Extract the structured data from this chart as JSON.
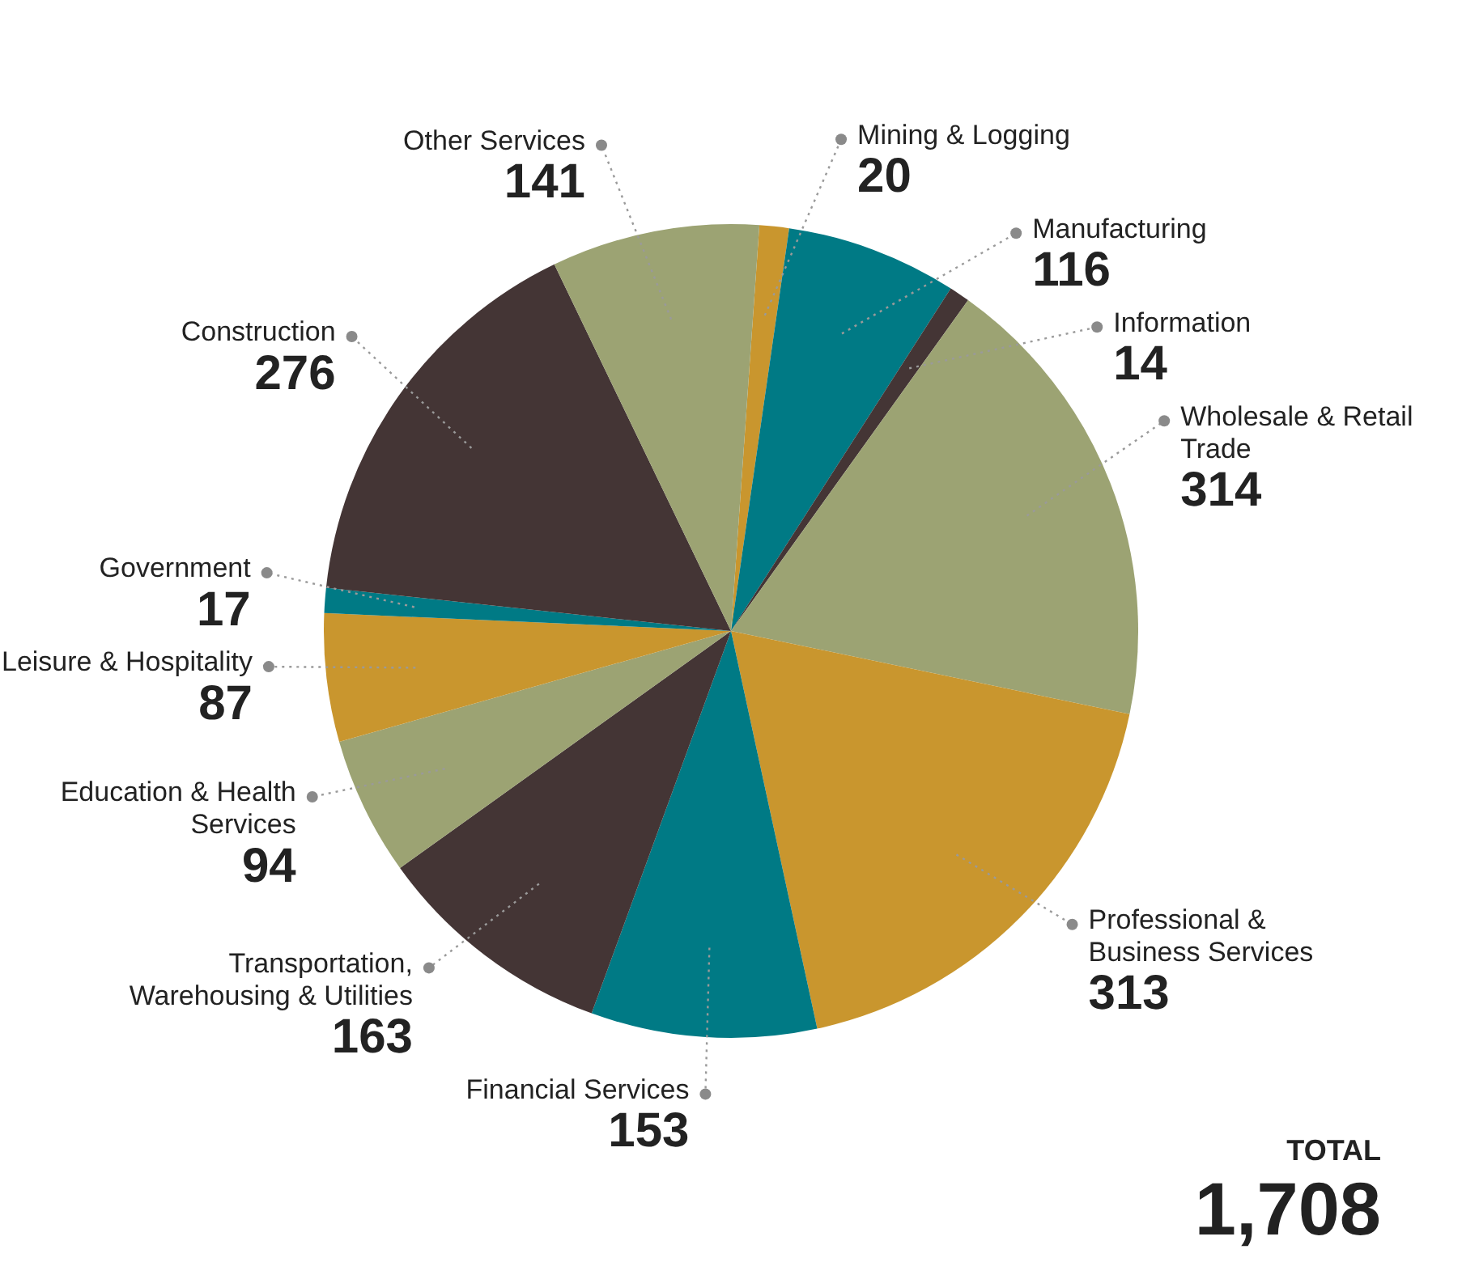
{
  "chart_data": {
    "type": "pie",
    "categories": [
      "Mining & Logging",
      "Manufacturing",
      "Information",
      "Wholesale & Retail Trade",
      "Professional & Business Services",
      "Financial Services",
      "Transportation, Warehousing & Utilities",
      "Education & Health Services",
      "Leisure & Hospitality",
      "Government",
      "Construction",
      "Other Services"
    ],
    "values": [
      20,
      116,
      14,
      314,
      313,
      153,
      163,
      94,
      87,
      17,
      276,
      141
    ],
    "colors": [
      "#c9962e",
      "#007a85",
      "#443535",
      "#9ca373",
      "#c9962e",
      "#007a85",
      "#443535",
      "#9ca373",
      "#c9962e",
      "#007a85",
      "#443535",
      "#9ca373"
    ],
    "data_labels": true,
    "legend": false,
    "annotations": [
      "TOTAL",
      "1,708"
    ]
  }
}
